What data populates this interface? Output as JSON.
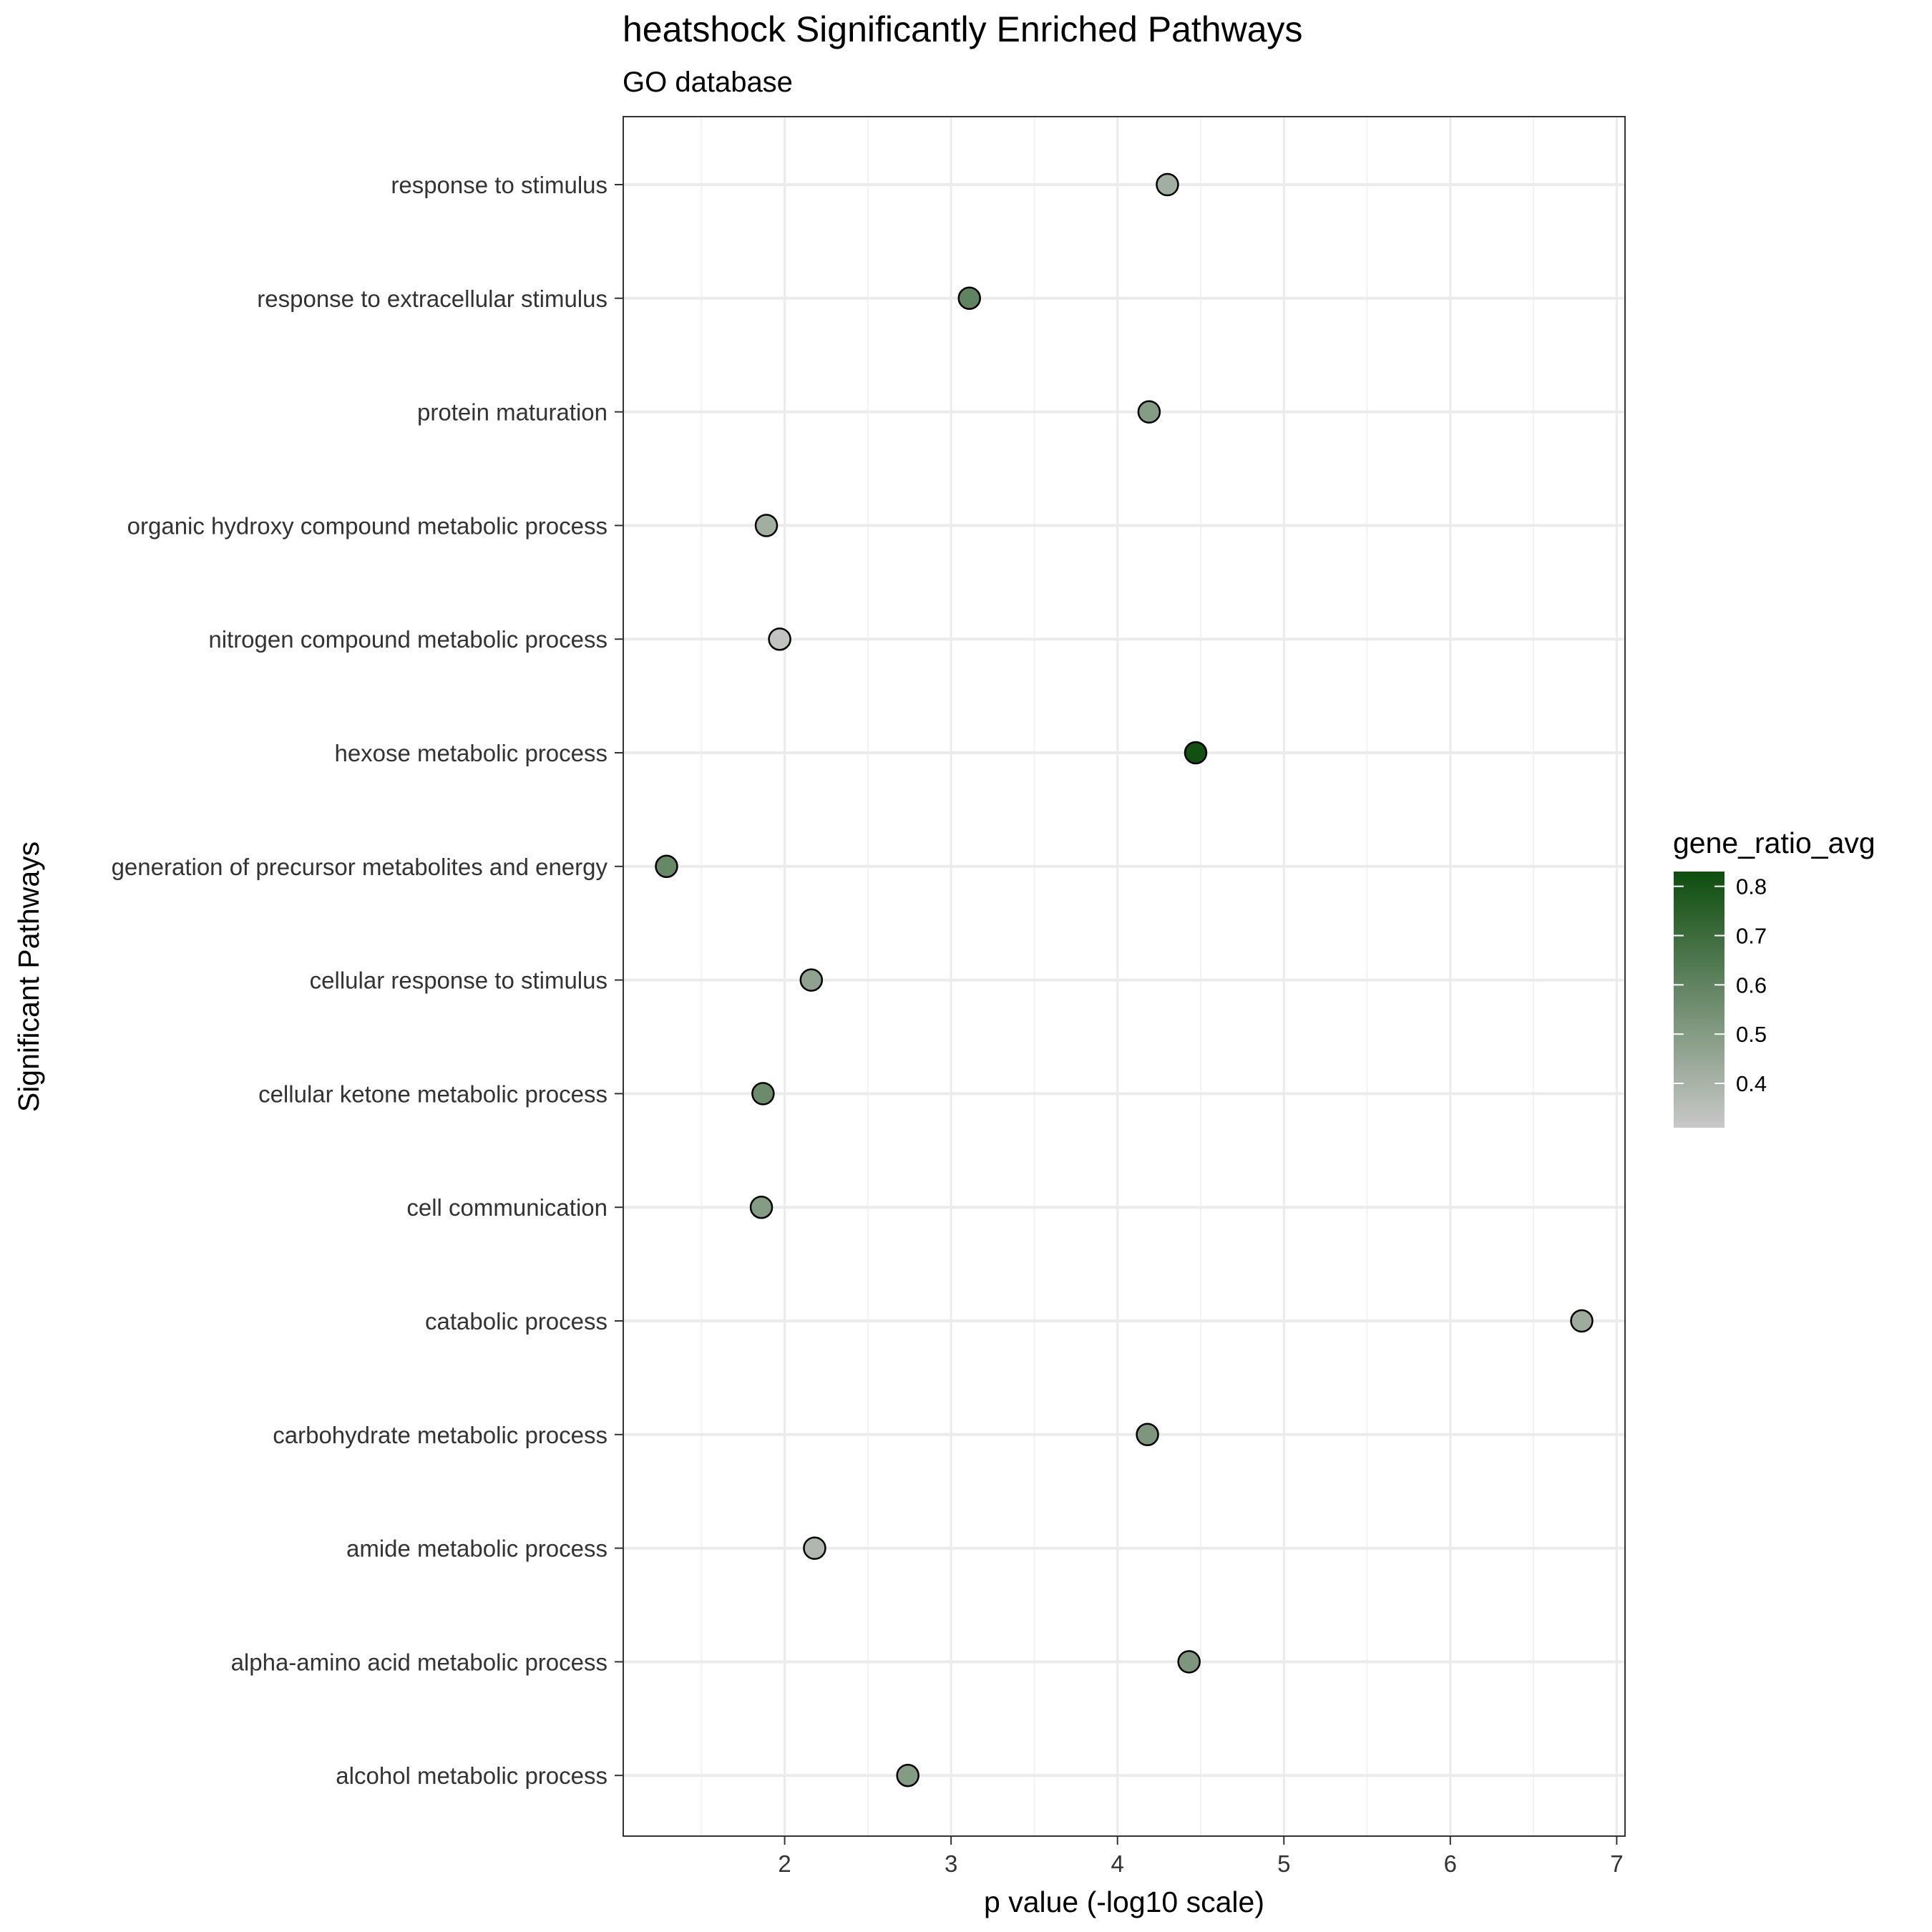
{
  "chart_data": {
    "type": "scatter",
    "title": "heatshock Significantly Enriched Pathways",
    "subtitle": "GO database",
    "xlabel": "p value (-log10 scale)",
    "ylabel": "Significant Pathways",
    "xlim": [
      1.03,
      7.05
    ],
    "x_ticks": [
      2,
      3,
      4,
      5,
      6,
      7
    ],
    "x_tick_labels": [
      "2",
      "3",
      "4",
      "5",
      "6",
      "7"
    ],
    "grid": true,
    "categories": [
      "response to stimulus",
      "response to extracellular stimulus",
      "protein maturation",
      "organic hydroxy compound metabolic process",
      "nitrogen compound metabolic process",
      "hexose metabolic process",
      "generation of precursor metabolites and energy",
      "cellular response to stimulus",
      "cellular ketone metabolic process",
      "cell communication",
      "catabolic process",
      "carbohydrate metabolic process",
      "amide metabolic process",
      "alpha-amino acid metabolic process",
      "alcohol metabolic process"
    ],
    "points": [
      {
        "category": "response to stimulus",
        "x": 4.3,
        "gene_ratio_avg": 0.42
      },
      {
        "category": "response to extracellular stimulus",
        "x": 3.11,
        "gene_ratio_avg": 0.6
      },
      {
        "category": "protein maturation",
        "x": 4.19,
        "gene_ratio_avg": 0.5
      },
      {
        "category": "organic hydroxy compound metabolic process",
        "x": 1.89,
        "gene_ratio_avg": 0.42
      },
      {
        "category": "nitrogen compound metabolic process",
        "x": 1.97,
        "gene_ratio_avg": 0.33
      },
      {
        "category": "hexose metabolic process",
        "x": 4.47,
        "gene_ratio_avg": 0.82
      },
      {
        "category": "generation of precursor metabolites and energy",
        "x": 1.29,
        "gene_ratio_avg": 0.58
      },
      {
        "category": "cellular response to stimulus",
        "x": 2.16,
        "gene_ratio_avg": 0.47
      },
      {
        "category": "cellular ketone metabolic process",
        "x": 1.87,
        "gene_ratio_avg": 0.57
      },
      {
        "category": "cell communication",
        "x": 1.86,
        "gene_ratio_avg": 0.5
      },
      {
        "category": "catabolic process",
        "x": 6.79,
        "gene_ratio_avg": 0.43
      },
      {
        "category": "carbohydrate metabolic process",
        "x": 4.18,
        "gene_ratio_avg": 0.52
      },
      {
        "category": "amide metabolic process",
        "x": 2.18,
        "gene_ratio_avg": 0.38
      },
      {
        "category": "alpha-amino acid metabolic process",
        "x": 4.43,
        "gene_ratio_avg": 0.52
      },
      {
        "category": "alcohol metabolic process",
        "x": 2.74,
        "gene_ratio_avg": 0.5
      }
    ],
    "legend": {
      "title": "gene_ratio_avg",
      "placement": "right",
      "min": 0.31,
      "max": 0.83,
      "ticks": [
        0.4,
        0.5,
        0.6,
        0.7,
        0.8
      ],
      "tick_labels": [
        "0.4",
        "0.5",
        "0.6",
        "0.7",
        "0.8"
      ],
      "low_color": "#c8c8c8",
      "high_color": "#0e4d0e"
    },
    "colors": {
      "panel_border": "#333333",
      "major_grid": "#ebebeb",
      "minor_grid": "#f2f2f2",
      "point_outline": "#000000"
    }
  }
}
